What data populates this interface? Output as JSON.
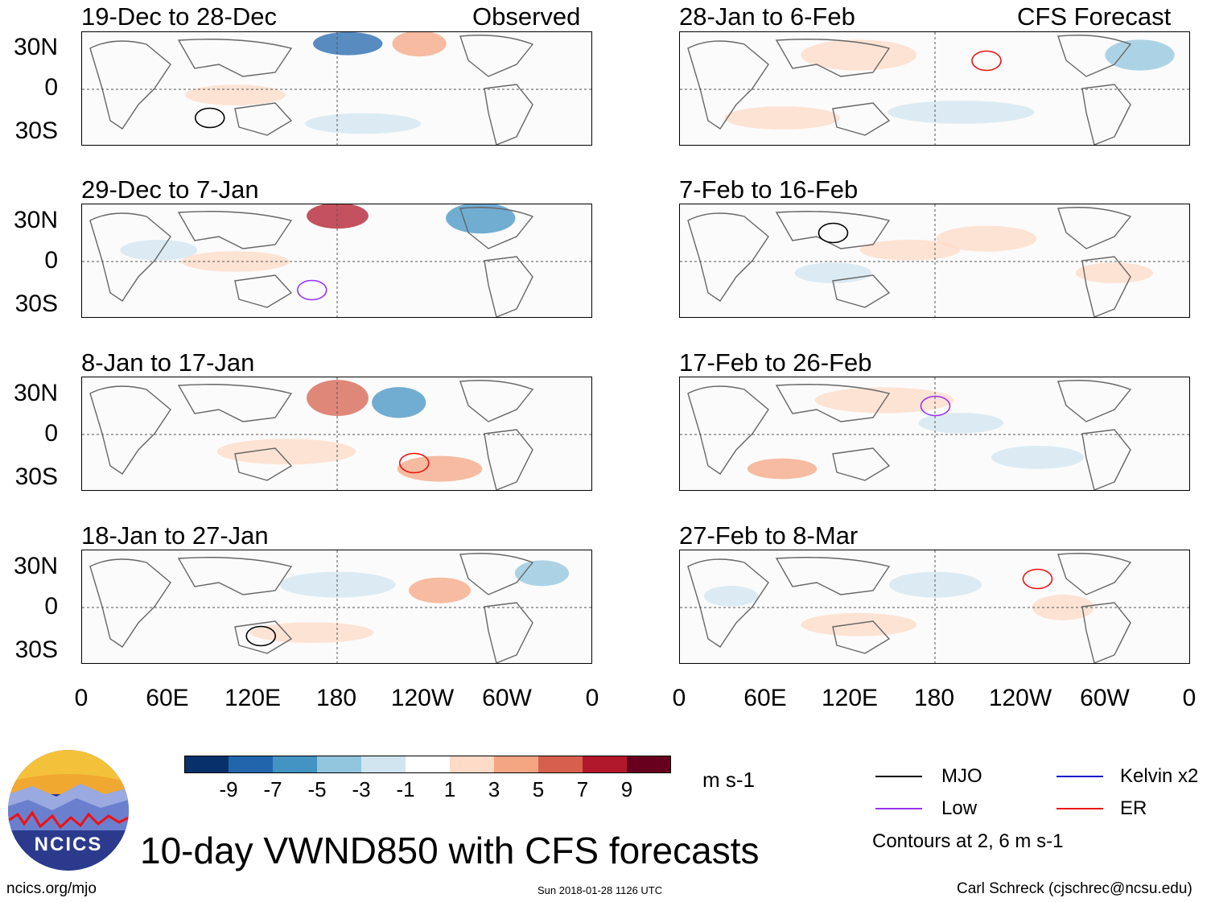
{
  "main_title": "10-day VWND850 with CFS forecasts",
  "column_headers": {
    "observed": "Observed",
    "forecast": "CFS Forecast"
  },
  "panels_observed": [
    {
      "period": "19-Dec to 28-Dec"
    },
    {
      "period": "29-Dec to 7-Jan"
    },
    {
      "period": "8-Jan to 17-Jan"
    },
    {
      "period": "18-Jan to 27-Jan"
    }
  ],
  "panels_forecast": [
    {
      "period": "28-Jan to 6-Feb"
    },
    {
      "period": "7-Feb to 16-Feb"
    },
    {
      "period": "17-Feb to 26-Feb"
    },
    {
      "period": "27-Feb to 8-Mar"
    }
  ],
  "lat_ticks": [
    "30N",
    "0",
    "30S"
  ],
  "lon_ticks": [
    "0",
    "60E",
    "120E",
    "180",
    "120W",
    "60W",
    "0"
  ],
  "chart_data": {
    "type": "heatmap",
    "variable": "VWND850",
    "units": "m s-1",
    "colorbar": {
      "ticks": [
        "-9",
        "-7",
        "-5",
        "-3",
        "-1",
        "1",
        "3",
        "5",
        "7",
        "9"
      ],
      "colors": [
        "#08306b",
        "#2166ac",
        "#4393c3",
        "#92c5de",
        "#d1e5f0",
        "#ffffff",
        "#fddbc7",
        "#f4a582",
        "#d6604d",
        "#b2182b",
        "#67001f"
      ]
    },
    "legend": [
      {
        "label": "MJO",
        "color": "#000000"
      },
      {
        "label": "Low",
        "color": "#9933ee"
      },
      {
        "label": "Kelvin x2",
        "color": "#1111cc"
      },
      {
        "label": "ER",
        "color": "#ee1111"
      }
    ],
    "contour_note": "Contours at 2, 6 m s-1",
    "x_range": [
      "0",
      "0"
    ],
    "y_range": [
      "40S",
      "40N"
    ]
  },
  "logo_text": "NCICS",
  "footer": {
    "url": "ncics.org/mjo",
    "timestamp": "Sun 2018-01-28 1126 UTC",
    "credit": "Carl Schreck (cjschrec@ncsu.edu)"
  }
}
